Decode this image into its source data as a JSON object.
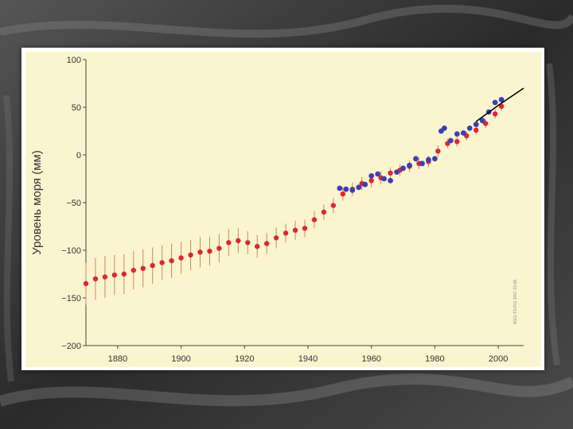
{
  "colors": {
    "background_dark": "#2e2e2e",
    "plot_background": "#fbf5cf",
    "frame": "#ffffff",
    "tide_gauge": "#e0262b",
    "tide_gauge_error": "#c9846a",
    "satellite": "#3a3fb8",
    "projection": "#000000"
  },
  "chart_data": {
    "type": "scatter",
    "title": "",
    "ylabel": "Уровень моря (мм)",
    "xlabel": "",
    "xlim": [
      1870,
      2008
    ],
    "ylim": [
      -200,
      100
    ],
    "xticks": [
      1880,
      1900,
      1920,
      1940,
      1960,
      1980,
      2000
    ],
    "yticks": [
      100,
      50,
      0,
      -50,
      -100,
      -150,
      -200
    ],
    "xtick_labels": [
      "1880",
      "1900",
      "1920",
      "1940",
      "1960",
      "1980",
      "2000"
    ],
    "ytick_labels": [
      "100",
      "50",
      "0",
      "−50",
      "−100",
      "−150",
      "−200"
    ],
    "grid": false,
    "credit": "WG1-TS-FIG 2007 10-08",
    "series": [
      {
        "kind": "tide-gauge reconstruction",
        "color": "#e0262b",
        "x": [
          1870,
          1873,
          1876,
          1879,
          1882,
          1885,
          1888,
          1891,
          1894,
          1897,
          1900,
          1903,
          1906,
          1909,
          1912,
          1915,
          1918,
          1921,
          1924,
          1927,
          1930,
          1933,
          1936,
          1939,
          1942,
          1945,
          1948,
          1951,
          1954,
          1957,
          1960,
          1963,
          1966,
          1969,
          1972,
          1975,
          1978,
          1981,
          1984,
          1987,
          1990,
          1993,
          1996,
          1999,
          2001
        ],
        "y": [
          -135,
          -130,
          -128,
          -126,
          -125,
          -121,
          -119,
          -116,
          -113,
          -111,
          -108,
          -105,
          -102,
          -101,
          -98,
          -92,
          -90,
          -92,
          -96,
          -93,
          -87,
          -82,
          -79,
          -77,
          -68,
          -60,
          -53,
          -41,
          -36,
          -30,
          -27,
          -24,
          -19,
          -16,
          -12,
          -9,
          -7,
          4,
          12,
          14,
          20,
          26,
          33,
          43,
          51
        ],
        "err": [
          22,
          22,
          22,
          21,
          21,
          20,
          20,
          19,
          18,
          18,
          17,
          16,
          16,
          15,
          15,
          14,
          13,
          12,
          12,
          11,
          11,
          10,
          10,
          9,
          9,
          8,
          8,
          7,
          7,
          7,
          7,
          7,
          6,
          6,
          6,
          6,
          6,
          6,
          5,
          5,
          5,
          5,
          5,
          5,
          5
        ]
      },
      {
        "kind": "satellite / recent gauges",
        "color": "#3a3fb8",
        "x": [
          1950,
          1952,
          1954,
          1956,
          1958,
          1960,
          1962,
          1964,
          1966,
          1968,
          1970,
          1972,
          1974,
          1976,
          1978,
          1980,
          1982,
          1983,
          1985,
          1987,
          1989,
          1991,
          1993,
          1995,
          1997,
          1999,
          2001
        ],
        "y": [
          -35,
          -36,
          -37,
          -34,
          -31,
          -22,
          -20,
          -25,
          -27,
          -18,
          -14,
          -11,
          -4,
          -9,
          -5,
          -4,
          25,
          28,
          15,
          22,
          23,
          28,
          32,
          36,
          45,
          55,
          58
        ]
      },
      {
        "kind": "projection",
        "color": "#000000",
        "x": [
          1993,
          2000,
          2008
        ],
        "y": [
          35,
          52,
          70
        ]
      }
    ]
  }
}
